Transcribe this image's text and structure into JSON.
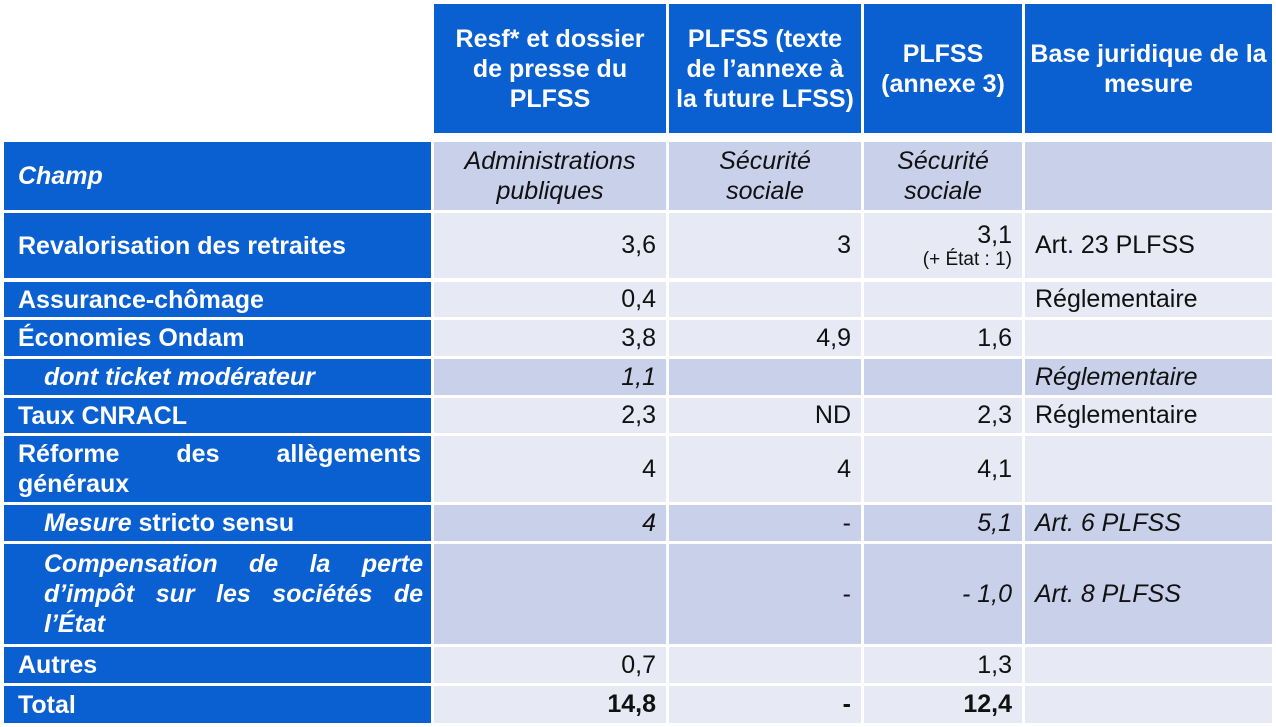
{
  "headers": {
    "col1": "Resf* et dossier de presse du PLFSS",
    "col2": "PLFSS (texte de l’annexe à la future LFSS)",
    "col3": "PLFSS (annexe 3)",
    "col4": "Base juridique de la mesure"
  },
  "champ": {
    "label": "Champ",
    "col1": "Administrations publiques",
    "col2": "Sécurité sociale",
    "col3": "Sécurité sociale"
  },
  "rows": {
    "revalorisation": {
      "label": "Revalorisation des retraites",
      "col1": "3,6",
      "col2": "3",
      "col3": "3,1",
      "col3_note": "(+ État : 1)",
      "base": "Art. 23 PLFSS"
    },
    "assurance": {
      "label": "Assurance-chômage",
      "col1": "0,4",
      "col2": "",
      "col3": "",
      "base": "Réglementaire"
    },
    "ondam": {
      "label": "Économies Ondam",
      "col1": "3,8",
      "col2": "4,9",
      "col3": "1,6",
      "base": ""
    },
    "ticket": {
      "label": "dont ticket modérateur",
      "col1": "1,1",
      "col2": "",
      "col3": "",
      "base": "Réglementaire"
    },
    "cnracl": {
      "label": "Taux CNRACL",
      "col1": "2,3",
      "col2": "ND",
      "col3": "2,3",
      "base": "Réglementaire"
    },
    "reforme": {
      "label_line1": "Réforme des allègements",
      "label_line2": "généraux",
      "col1": "4",
      "col2": "4",
      "col3": "4,1",
      "base": ""
    },
    "mesure": {
      "label_ital": "Mesure",
      "label_rest": " stricto sensu",
      "col1": "4",
      "col2": "-",
      "col3": "5,1",
      "base": "Art. 6 PLFSS"
    },
    "compensation": {
      "label_line1": "Compensation de la perte",
      "label_line2": "d’impôt sur les sociétés de",
      "label_line3": "l’État",
      "col1": "",
      "col2": "-",
      "col3": "- 1,0",
      "base": "Art. 8 PLFSS"
    },
    "autres": {
      "label": "Autres",
      "col1": "0,7",
      "col2": "",
      "col3": "1,3",
      "base": ""
    },
    "total": {
      "label": "Total",
      "col1": "14,8",
      "col2": "-",
      "col3": "12,4",
      "base": ""
    }
  },
  "colors": {
    "header_blue": "#0a5fd1",
    "cell_dark": "#c9d0ea",
    "cell_light": "#e7e9f4"
  }
}
